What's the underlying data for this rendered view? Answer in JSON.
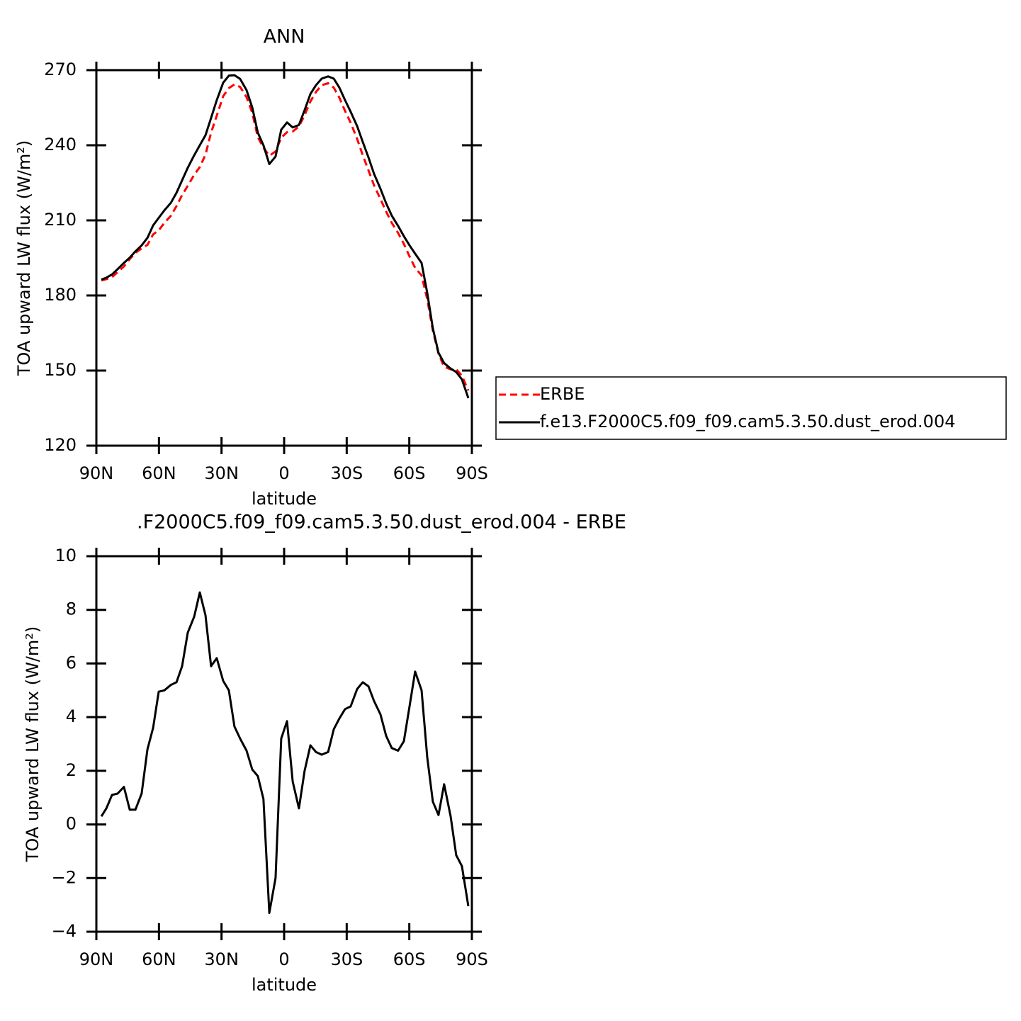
{
  "chart_data": [
    {
      "type": "line",
      "title": "ANN",
      "ylabel": "TOA upward LW flux (W/m²)",
      "xlabel": "latitude",
      "x": [
        87.6,
        85.2,
        82.5,
        79.8,
        76.8,
        74.0,
        71.3,
        68.3,
        65.5,
        62.8,
        60.1,
        57.4,
        54.3,
        51.6,
        48.9,
        46.2,
        43.1,
        40.4,
        37.7,
        35.0,
        32.3,
        29.2,
        26.5,
        23.8,
        21.1,
        18.0,
        15.3,
        12.6,
        9.9,
        7.1,
        4.1,
        1.4,
        -1.4,
        -4.1,
        -7.1,
        -9.8,
        -12.6,
        -15.3,
        -18.0,
        -21.1,
        -23.8,
        -26.5,
        -29.2,
        -31.9,
        -35.0,
        -37.7,
        -40.4,
        -43.1,
        -46.2,
        -48.9,
        -51.6,
        -54.6,
        -57.4,
        -60.1,
        -62.8,
        -65.9,
        -68.6,
        -71.3,
        -74.0,
        -76.7,
        -79.8,
        -82.5,
        -85.2,
        -88.3
      ],
      "xlim": [
        90,
        -90
      ],
      "xticks": [
        {
          "value": 90,
          "label": "90N"
        },
        {
          "value": 60,
          "label": "60N"
        },
        {
          "value": 30,
          "label": "30N"
        },
        0,
        {
          "value": -30,
          "label": "30S"
        },
        {
          "value": -60,
          "label": "60S"
        },
        {
          "value": -90,
          "label": "90S"
        }
      ],
      "ylim": [
        120,
        270
      ],
      "yticks": [
        120,
        150,
        180,
        210,
        240,
        270
      ],
      "legend": "right",
      "series": [
        {
          "name": "ERBE",
          "color": "#ff0000",
          "dash": true,
          "values": [
            186,
            186.5,
            187.3,
            189.3,
            191.6,
            194.5,
            197,
            198.8,
            200.2,
            204.4,
            206,
            209,
            211.8,
            215.7,
            220.1,
            223.8,
            228.2,
            231.3,
            236.2,
            245,
            251.8,
            259.6,
            262.8,
            264.3,
            263.3,
            259.2,
            253,
            243.2,
            239,
            235.8,
            237.5,
            243,
            245.2,
            245.5,
            247.5,
            252,
            257.5,
            261.3,
            264,
            264.8,
            263,
            259,
            253.7,
            249,
            242.5,
            236,
            230,
            224,
            218.5,
            213.5,
            209,
            205,
            200.6,
            195.6,
            191,
            188,
            178.5,
            166,
            156.7,
            151.5,
            150.5,
            150.5,
            148,
            142
          ]
        },
        {
          "name": "f.e13.F2000C5.f09_f09.cam5.3.50.dust_erod.004",
          "color": "#000000",
          "dash": false,
          "values": [
            186.3,
            187.1,
            188.4,
            190.5,
            193.0,
            195.1,
            197.6,
            200.0,
            203.0,
            208.0,
            211.0,
            214.0,
            217.0,
            221.0,
            226.0,
            231.0,
            236.0,
            240.0,
            244.0,
            250.9,
            258.0,
            265.0,
            267.8,
            268.0,
            266.5,
            262.0,
            255.1,
            245.0,
            240.0,
            232.5,
            235.5,
            246.2,
            249.1,
            247.1,
            248.1,
            254.0,
            260.5,
            264.0,
            266.6,
            267.5,
            266.6,
            263.0,
            258.0,
            253.4,
            247.6,
            241.3,
            235.2,
            228.6,
            222.6,
            216.8,
            211.9,
            207.8,
            203.7,
            200.0,
            196.7,
            193.0,
            181.0,
            166.9,
            157.1,
            153.0,
            150.8,
            149.4,
            146.5,
            139.0
          ]
        }
      ]
    },
    {
      "type": "line",
      "title": ".F2000C5.f09_f09.cam5.3.50.dust_erod.004 - ERBE",
      "ylabel": "TOA upward LW flux (W/m²)",
      "xlabel": "latitude",
      "x": [
        87.6,
        85.2,
        82.5,
        79.8,
        76.8,
        74.0,
        71.3,
        68.3,
        65.5,
        62.8,
        60.1,
        57.4,
        54.3,
        51.6,
        48.9,
        46.2,
        43.1,
        40.4,
        37.7,
        35.0,
        32.3,
        29.2,
        26.5,
        23.8,
        21.1,
        18.0,
        15.3,
        12.6,
        9.9,
        7.1,
        4.1,
        1.4,
        -1.4,
        -4.1,
        -7.1,
        -9.8,
        -12.6,
        -15.3,
        -18.0,
        -21.1,
        -23.8,
        -26.5,
        -29.2,
        -31.9,
        -35.0,
        -37.7,
        -40.4,
        -43.1,
        -46.2,
        -48.9,
        -51.6,
        -54.6,
        -57.4,
        -60.1,
        -62.8,
        -65.9,
        -68.6,
        -71.3,
        -74.0,
        -76.7,
        -79.8,
        -82.5,
        -85.2,
        -88.3
      ],
      "xlim": [
        90,
        -90
      ],
      "xticks": [
        {
          "value": 90,
          "label": "90N"
        },
        {
          "value": 60,
          "label": "60N"
        },
        {
          "value": 30,
          "label": "30N"
        },
        0,
        {
          "value": -30,
          "label": "30S"
        },
        {
          "value": -60,
          "label": "60S"
        },
        {
          "value": -90,
          "label": "90S"
        }
      ],
      "ylim": [
        -4,
        10
      ],
      "yticks": [
        {
          "value": -4,
          "label": "−4"
        },
        {
          "value": -2,
          "label": "−2"
        },
        0,
        2,
        4,
        6,
        8,
        10
      ],
      "series": [
        {
          "color": "#000000",
          "dash": false,
          "values": [
            0.3,
            0.6,
            1.1,
            1.15,
            1.4,
            0.55,
            0.55,
            1.15,
            2.8,
            3.6,
            4.95,
            5.0,
            5.2,
            5.3,
            5.9,
            7.15,
            7.75,
            8.65,
            7.8,
            5.9,
            6.2,
            5.35,
            5.0,
            3.65,
            3.2,
            2.75,
            2.05,
            1.8,
            0.95,
            -3.3,
            -2.0,
            3.2,
            3.85,
            1.6,
            0.6,
            2.0,
            2.95,
            2.7,
            2.6,
            2.7,
            3.55,
            3.95,
            4.3,
            4.4,
            5.05,
            5.3,
            5.15,
            4.6,
            4.1,
            3.3,
            2.85,
            2.75,
            3.1,
            4.4,
            5.7,
            5.0,
            2.5,
            0.85,
            0.35,
            1.5,
            0.3,
            -1.15,
            -1.55,
            -3.05
          ]
        }
      ]
    }
  ]
}
